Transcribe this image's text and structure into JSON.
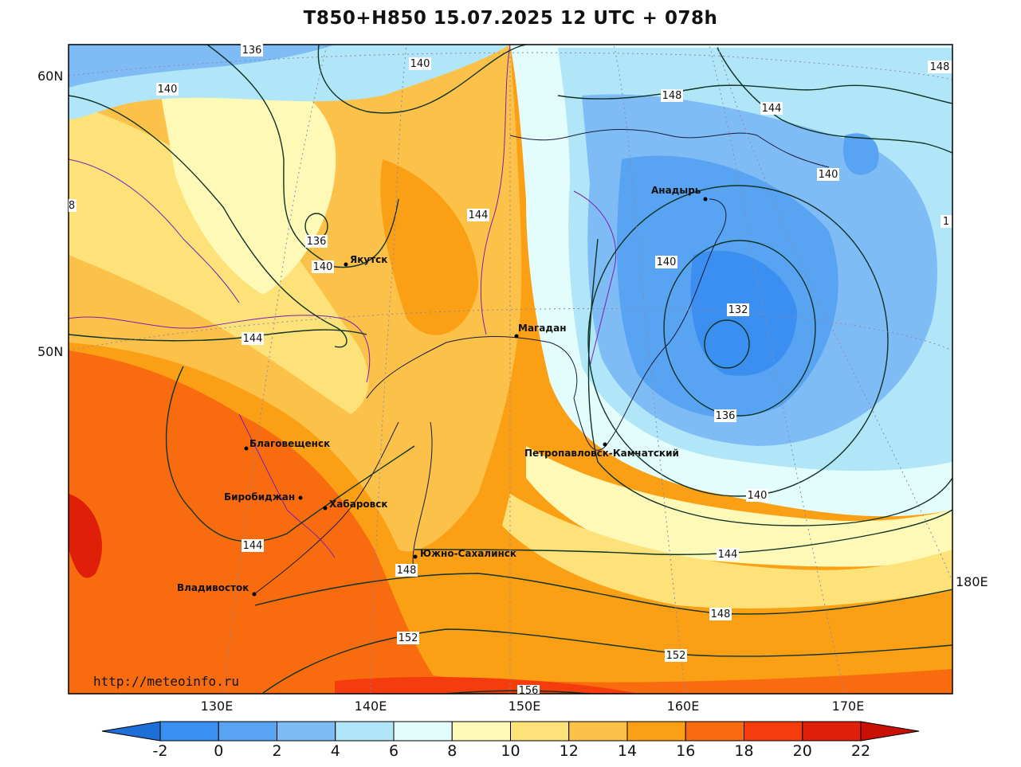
{
  "title": "T850+H850 15.07.2025 12 UTC + 078h",
  "credit": "http://meteoinfo.ru",
  "lat_labels": [
    "60N",
    "50N"
  ],
  "lon_labels": [
    "130E",
    "140E",
    "150E",
    "160E",
    "170E",
    "180E"
  ],
  "colorbar": {
    "labels": [
      "-2",
      "0",
      "2",
      "4",
      "6",
      "8",
      "10",
      "12",
      "14",
      "16",
      "18",
      "20",
      "22"
    ],
    "colors": [
      "#1f6fd9",
      "#3b8ff0",
      "#58a4f2",
      "#7fbcf6",
      "#b0e6f7",
      "#e3fdfd",
      "#fff9b8",
      "#fde27a",
      "#fcc149",
      "#fb9f14",
      "#f86c0f",
      "#f43c0c",
      "#e01f08",
      "#c81005"
    ]
  },
  "cities": [
    "Якутск",
    "Магадан",
    "Анадырь",
    "Петропавловск-Камчатский",
    "Благовещенск",
    "Биробиджан",
    "Хабаровск",
    "Южно-Сахалинск",
    "Владивосток"
  ],
  "isohypse_labels": [
    "136",
    "140",
    "140",
    "148",
    "144",
    "140",
    "144",
    "136",
    "140",
    "140",
    "132",
    "144",
    "136",
    "140",
    "144",
    "144",
    "148",
    "148",
    "152",
    "152",
    "156",
    "148",
    "8",
    "1"
  ]
}
